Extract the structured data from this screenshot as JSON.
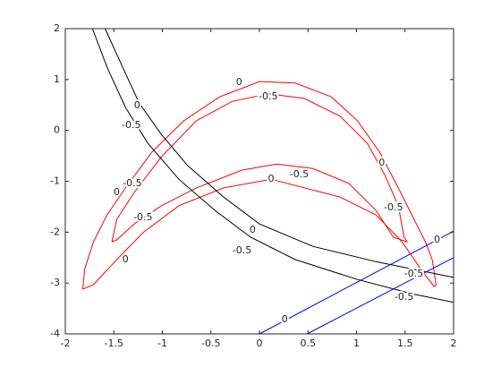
{
  "chart_data": {
    "type": "contour",
    "xlim": [
      -2,
      2
    ],
    "ylim": [
      -4,
      2
    ],
    "xticks": [
      -2,
      -1.5,
      -1,
      -0.5,
      0,
      0.5,
      1,
      1.5,
      2
    ],
    "yticks": [
      -4,
      -3,
      -2,
      -1,
      0,
      1,
      2
    ],
    "series": [
      {
        "level": 0,
        "color": "#ff0000",
        "x": [
          -1.82,
          -1.8,
          -1.71,
          -1.57,
          -1.38,
          -1.11,
          -0.78,
          -0.41,
          0,
          0.37,
          0.74,
          1.01,
          1.24,
          1.43,
          1.57,
          1.71,
          1.78,
          1.82,
          1.8,
          1.66,
          1.47,
          1.2,
          0.83,
          0.12,
          -0.37,
          -0.83,
          -1.2,
          -1.47,
          -1.71,
          -1.82
        ],
        "y": [
          -3.12,
          -2.72,
          -2.19,
          -1.66,
          -1.13,
          -0.43,
          0.19,
          0.66,
          0.96,
          0.93,
          0.66,
          0.19,
          -0.43,
          -1.13,
          -1.66,
          -2.19,
          -2.54,
          -3.03,
          -3.07,
          -2.72,
          -2.19,
          -1.66,
          -1.31,
          -0.96,
          -1.13,
          -1.48,
          -2.01,
          -2.54,
          -3.03,
          -3.12
        ]
      },
      {
        "level": -0.5,
        "color": "#ff0000",
        "x": [
          -1.52,
          -1.47,
          -1.29,
          -1.01,
          -0.65,
          -0.28,
          0.09,
          0.46,
          0.83,
          1.11,
          1.29,
          1.43,
          1.49,
          1.52,
          1.38,
          1.2,
          0.92,
          0.55,
          0.18,
          -0.18,
          -0.65,
          -1.01,
          -1.29,
          -1.47,
          -1.52
        ],
        "y": [
          -2.19,
          -1.75,
          -1.22,
          -0.52,
          0.19,
          0.57,
          0.72,
          0.63,
          0.28,
          -0.25,
          -0.87,
          -1.48,
          -2.1,
          -2.19,
          -2.1,
          -1.57,
          -1.04,
          -0.75,
          -0.66,
          -0.78,
          -1.13,
          -1.48,
          -1.84,
          -2.15,
          -2.19
        ]
      },
      {
        "level": 0,
        "color": "#000000",
        "x": [
          -1.59,
          -1.43,
          -1.24,
          -1.01,
          -0.74,
          -0.37,
          0,
          0.55,
          1.2,
          2
        ],
        "y": [
          2,
          1.33,
          0.54,
          -0.08,
          -0.69,
          -1.31,
          -1.84,
          -2.28,
          -2.58,
          -2.89
        ]
      },
      {
        "level": -0.5,
        "color": "#000000",
        "x": [
          -1.72,
          -1.57,
          -1.38,
          -1.15,
          -0.83,
          -0.46,
          -0.09,
          0.37,
          1.01,
          1.57,
          2
        ],
        "y": [
          2,
          1.24,
          0.45,
          -0.25,
          -0.96,
          -1.57,
          -2.1,
          -2.54,
          -2.93,
          -3.21,
          -3.38
        ]
      },
      {
        "level": 0,
        "color": "#0000ff",
        "x": [
          0,
          2
        ],
        "y": [
          -4,
          -1.98
        ]
      },
      {
        "level": -0.5,
        "color": "#0000ff",
        "x": [
          0.49,
          2
        ],
        "y": [
          -4,
          -2.5
        ]
      }
    ],
    "labels": [
      {
        "text": 0,
        "x": -0.21,
        "y": 0.94
      },
      {
        "text": 0,
        "x": 1.26,
        "y": -0.64
      },
      {
        "text": 0,
        "x": -1.47,
        "y": -1.22
      },
      {
        "text": 0,
        "x": -1.38,
        "y": -2.54
      },
      {
        "text": 0,
        "x": 0.12,
        "y": -0.96
      },
      {
        "text": -0.5,
        "x": 0.09,
        "y": 0.66
      },
      {
        "text": -0.5,
        "x": -1.31,
        "y": -1.04
      },
      {
        "text": -0.5,
        "x": -1.2,
        "y": -1.71
      },
      {
        "text": -0.5,
        "x": 0.41,
        "y": -0.87
      },
      {
        "text": -0.5,
        "x": 1.38,
        "y": -1.52
      },
      {
        "text": 0,
        "x": -1.26,
        "y": 0.49
      },
      {
        "text": 0,
        "x": -0.07,
        "y": -1.96
      },
      {
        "text": -0.5,
        "x": -1.32,
        "y": 0.1
      },
      {
        "text": -0.5,
        "x": -0.18,
        "y": -2.36
      },
      {
        "text": -0.5,
        "x": 1.49,
        "y": -3.28
      },
      {
        "text": 0,
        "x": 0.26,
        "y": -3.72
      },
      {
        "text": 0,
        "x": 1.83,
        "y": -2.15
      },
      {
        "text": -0.5,
        "x": 1.59,
        "y": -2.82
      }
    ]
  }
}
